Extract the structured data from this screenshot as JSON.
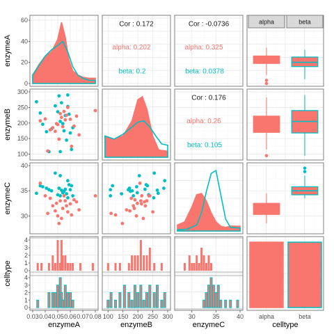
{
  "colors": {
    "alpha": "#F8766D",
    "beta": "#00BFC4"
  },
  "variables": [
    "enzymeA",
    "enzymeB",
    "enzymeC",
    "celltype"
  ],
  "levels": [
    "alpha",
    "beta"
  ],
  "axes": {
    "enzymeA": {
      "lim": [
        0.03,
        0.08
      ],
      "ticks": [
        0.03,
        0.04,
        0.05,
        0.06,
        0.07,
        0.08
      ],
      "tick_labels": [
        "0.03",
        "0.04",
        "0.05",
        "0.06",
        "0.07",
        "0.08"
      ]
    },
    "enzymeB": {
      "lim": [
        90,
        300
      ],
      "ticks": [
        100,
        150,
        200,
        250,
        300
      ],
      "tick_labels": [
        "100",
        "150",
        "200",
        "250",
        "300"
      ]
    },
    "enzymeC": {
      "lim": [
        27,
        40
      ],
      "ticks": [
        30,
        35,
        40
      ],
      "tick_labels": [
        "30",
        "35",
        "40"
      ]
    },
    "enzymeA_density_y": {
      "lim": [
        0,
        62
      ],
      "ticks": [
        0,
        20,
        40,
        60
      ],
      "tick_labels": [
        "0",
        "20",
        "40",
        "60"
      ]
    },
    "count": {
      "lim": [
        0,
        4
      ],
      "ticks": [
        0,
        1,
        2,
        3,
        4
      ],
      "tick_labels": [
        "0",
        "1",
        "2",
        "3",
        "4"
      ]
    }
  },
  "chart_data": {
    "type": "scatter-matrix",
    "row_labels": [
      "enzymeA",
      "enzymeB",
      "enzymeC",
      "celltype"
    ],
    "column_labels": [
      "enzymeA",
      "enzymeB",
      "enzymeC",
      "celltype"
    ],
    "strip_labels": [
      "alpha",
      "beta"
    ],
    "correlations": [
      {
        "pair": "enzymeA-enzymeB",
        "overall": "Cor : 0.172",
        "alpha": "alpha: 0.202",
        "beta": "beta: 0.2"
      },
      {
        "pair": "enzymeA-enzymeC",
        "overall": "Cor : -0.0736",
        "alpha": "alpha: 0.325",
        "beta": "beta: 0.0378"
      },
      {
        "pair": "enzymeB-enzymeC",
        "overall": "Cor : 0.176",
        "alpha": "alpha: 0.26",
        "beta": "beta: 0.105"
      }
    ],
    "density": {
      "enzymeA": {
        "alpha": {
          "x": [
            0.03,
            0.035,
            0.04,
            0.045,
            0.05,
            0.053,
            0.056,
            0.059,
            0.062,
            0.066,
            0.07,
            0.075,
            0.08
          ],
          "y": [
            8,
            18,
            26,
            30,
            42,
            58,
            44,
            22,
            12,
            8,
            6,
            5,
            5
          ]
        },
        "beta": {
          "x": [
            0.03,
            0.035,
            0.04,
            0.045,
            0.05,
            0.054,
            0.058,
            0.062,
            0.066,
            0.07,
            0.075,
            0.08
          ],
          "y": [
            8,
            17,
            26,
            32,
            36,
            40,
            30,
            16,
            8,
            5,
            3,
            3
          ]
        }
      },
      "enzymeB": {
        "alpha": {
          "x": [
            90,
            120,
            150,
            180,
            200,
            215,
            230,
            250,
            270,
            300
          ],
          "y": [
            0.35,
            0.3,
            0.35,
            0.6,
            0.95,
            1.0,
            0.8,
            0.35,
            0.12,
            0.1
          ]
        },
        "beta": {
          "x": [
            90,
            120,
            150,
            180,
            200,
            220,
            240,
            260,
            280,
            300
          ],
          "y": [
            0.35,
            0.3,
            0.38,
            0.5,
            0.58,
            0.6,
            0.5,
            0.35,
            0.22,
            0.2
          ]
        }
      },
      "enzymeC": {
        "alpha": {
          "x": [
            27,
            28.5,
            30,
            31,
            32,
            33,
            34,
            35,
            36,
            37,
            38,
            40
          ],
          "y": [
            0.1,
            0.15,
            0.4,
            0.6,
            0.62,
            0.5,
            0.3,
            0.15,
            0.08,
            0.06,
            0.08,
            0.08
          ]
        },
        "beta": {
          "x": [
            27,
            29,
            31,
            32,
            33,
            34,
            35,
            36,
            37,
            38,
            40
          ],
          "y": [
            0.02,
            0.03,
            0.1,
            0.3,
            0.65,
            0.95,
            1.0,
            0.6,
            0.2,
            0.06,
            0.05
          ]
        }
      }
    },
    "boxplots": {
      "enzymeB": {
        "alpha": {
          "whisker_low": 115,
          "q1": 170,
          "median": 198,
          "q3": 222,
          "whisker_high": 282,
          "outliers": [
            95
          ]
        },
        "beta": {
          "whisker_low": 95,
          "q1": 168,
          "median": 205,
          "q3": 240,
          "whisker_high": 290,
          "outliers": []
        }
      },
      "enzymeC": {
        "alpha": {
          "whisker_low": 28.5,
          "q1": 30.3,
          "median": 31.5,
          "q3": 32.5,
          "whisker_high": 34.5,
          "outliers": []
        },
        "beta": {
          "whisker_low": 33.5,
          "q1": 34.2,
          "median": 35.0,
          "q3": 35.8,
          "whisker_high": 38,
          "outliers": [
            39.5,
            38.8
          ]
        }
      }
    },
    "celltype_bars": {
      "alpha": 0.5,
      "beta": 0.5
    },
    "points": [
      {
        "A": 0.033,
        "B": 268,
        "C": 34.5,
        "g": "beta"
      },
      {
        "A": 0.036,
        "B": 232,
        "C": 36.0,
        "g": "beta"
      },
      {
        "A": 0.038,
        "B": 196,
        "C": 35.8,
        "g": "beta"
      },
      {
        "A": 0.041,
        "B": 172,
        "C": 35.5,
        "g": "beta"
      },
      {
        "A": 0.043,
        "B": 108,
        "C": 35.2,
        "g": "beta"
      },
      {
        "A": 0.045,
        "B": 181,
        "C": 35.0,
        "g": "beta"
      },
      {
        "A": 0.048,
        "B": 255,
        "C": 38.5,
        "g": "beta"
      },
      {
        "A": 0.05,
        "B": 236,
        "C": 34.2,
        "g": "beta"
      },
      {
        "A": 0.051,
        "B": 287,
        "C": 35.5,
        "g": "beta"
      },
      {
        "A": 0.052,
        "B": 108,
        "C": 34.0,
        "g": "beta"
      },
      {
        "A": 0.052,
        "B": 205,
        "C": 38.0,
        "g": "beta"
      },
      {
        "A": 0.053,
        "B": 265,
        "C": 35.1,
        "g": "beta"
      },
      {
        "A": 0.054,
        "B": 198,
        "C": 34.6,
        "g": "beta"
      },
      {
        "A": 0.055,
        "B": 175,
        "C": 34.9,
        "g": "beta"
      },
      {
        "A": 0.056,
        "B": 224,
        "C": 35.3,
        "g": "beta"
      },
      {
        "A": 0.057,
        "B": 145,
        "C": 34.4,
        "g": "beta"
      },
      {
        "A": 0.058,
        "B": 253,
        "C": 33.6,
        "g": "beta"
      },
      {
        "A": 0.058,
        "B": 290,
        "C": 37.0,
        "g": "beta"
      },
      {
        "A": 0.059,
        "B": 228,
        "C": 36.2,
        "g": "beta"
      },
      {
        "A": 0.06,
        "B": 168,
        "C": 35.2,
        "g": "beta"
      },
      {
        "A": 0.061,
        "B": 115,
        "C": 36.0,
        "g": "beta"
      },
      {
        "A": 0.062,
        "B": 185,
        "C": 34.0,
        "g": "beta"
      },
      {
        "A": 0.036,
        "B": 207,
        "C": 36.5,
        "g": "alpha"
      },
      {
        "A": 0.04,
        "B": 213,
        "C": 34.0,
        "g": "alpha"
      },
      {
        "A": 0.042,
        "B": 110,
        "C": 30.5,
        "g": "alpha"
      },
      {
        "A": 0.044,
        "B": 178,
        "C": 33.5,
        "g": "alpha"
      },
      {
        "A": 0.046,
        "B": 185,
        "C": 32.0,
        "g": "alpha"
      },
      {
        "A": 0.048,
        "B": 173,
        "C": 31.0,
        "g": "alpha"
      },
      {
        "A": 0.049,
        "B": 198,
        "C": 32.5,
        "g": "alpha"
      },
      {
        "A": 0.05,
        "B": 195,
        "C": 30.0,
        "g": "alpha"
      },
      {
        "A": 0.051,
        "B": 148,
        "C": 28.5,
        "g": "alpha"
      },
      {
        "A": 0.052,
        "B": 230,
        "C": 33.0,
        "g": "alpha"
      },
      {
        "A": 0.053,
        "B": 218,
        "C": 29.5,
        "g": "alpha"
      },
      {
        "A": 0.054,
        "B": 188,
        "C": 31.5,
        "g": "alpha"
      },
      {
        "A": 0.055,
        "B": 237,
        "C": 34.0,
        "g": "alpha"
      },
      {
        "A": 0.056,
        "B": 210,
        "C": 33.0,
        "g": "alpha"
      },
      {
        "A": 0.057,
        "B": 225,
        "C": 32.0,
        "g": "alpha"
      },
      {
        "A": 0.058,
        "B": 250,
        "C": 30.8,
        "g": "alpha"
      },
      {
        "A": 0.06,
        "B": 212,
        "C": 32.4,
        "g": "alpha"
      },
      {
        "A": 0.061,
        "B": 125,
        "C": 30.2,
        "g": "alpha"
      },
      {
        "A": 0.063,
        "B": 190,
        "C": 33.2,
        "g": "alpha"
      },
      {
        "A": 0.065,
        "B": 222,
        "C": 32.8,
        "g": "alpha"
      },
      {
        "A": 0.067,
        "B": 162,
        "C": 31.2,
        "g": "alpha"
      },
      {
        "A": 0.08,
        "B": 240,
        "C": 34.0,
        "g": "alpha"
      }
    ],
    "histograms": {
      "enzymeA": {
        "x": [
          0.034,
          0.037,
          0.043,
          0.046,
          0.048,
          0.05,
          0.052,
          0.053,
          0.054,
          0.056,
          0.058,
          0.06,
          0.062,
          0.068,
          0.078
        ],
        "alpha": [
          1,
          1,
          1,
          2,
          1,
          4,
          1,
          4,
          2,
          2,
          1,
          1,
          1,
          1,
          1
        ],
        "beta": [
          1,
          0,
          2,
          2,
          2,
          3,
          4,
          2,
          1,
          3,
          2,
          2,
          1,
          0,
          0
        ]
      },
      "enzymeB": {
        "x": [
          100,
          110,
          125,
          140,
          155,
          170,
          180,
          190,
          200,
          210,
          220,
          230,
          240,
          255,
          265,
          280,
          290
        ],
        "alpha": [
          1,
          0,
          1,
          1,
          0,
          1,
          2,
          2,
          2,
          4,
          2,
          2,
          3,
          1,
          0,
          1,
          0
        ],
        "beta": [
          1,
          2,
          1,
          2,
          3,
          2,
          1,
          3,
          2,
          3,
          1,
          2,
          3,
          2,
          3,
          1,
          2
        ]
      },
      "enzymeC": {
        "x": [
          28.5,
          29.5,
          30.0,
          30.5,
          31.0,
          31.5,
          32.0,
          32.5,
          33.0,
          33.5,
          34.0,
          34.5,
          35.0,
          35.5,
          36.0,
          37.0,
          38.0,
          39.5
        ],
        "alpha": [
          1,
          2,
          1,
          1,
          2,
          1,
          3,
          2,
          1,
          2,
          1,
          0,
          0,
          0,
          0,
          0,
          0,
          0
        ],
        "beta": [
          0,
          0,
          0,
          0,
          0,
          0,
          0,
          1,
          2,
          3,
          4,
          3,
          2,
          3,
          1,
          1,
          1,
          1
        ]
      }
    }
  }
}
